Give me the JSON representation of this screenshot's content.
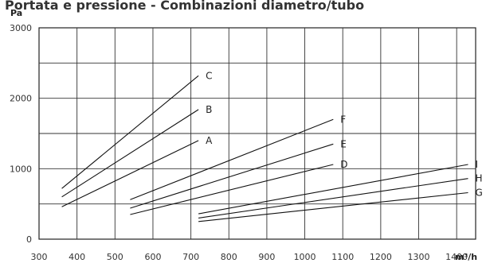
{
  "chart_data": {
    "type": "line",
    "title": "Portata e pressione - Combinazioni diametro/tubo",
    "ylabel": "Pa",
    "xlabel": "m³/h",
    "xlim": [
      300,
      1450
    ],
    "ylim": [
      0,
      3000
    ],
    "x_ticks": [
      300,
      400,
      500,
      600,
      700,
      800,
      900,
      1000,
      1100,
      1200,
      1300,
      1400
    ],
    "y_ticks": [
      0,
      1000,
      2000,
      3000
    ],
    "grid": true,
    "series": [
      {
        "name": "C",
        "x": [
          360,
          720
        ],
        "y": [
          720,
          2320
        ]
      },
      {
        "name": "B",
        "x": [
          360,
          720
        ],
        "y": [
          600,
          1840
        ]
      },
      {
        "name": "A",
        "x": [
          360,
          720
        ],
        "y": [
          460,
          1400
        ]
      },
      {
        "name": "F",
        "x": [
          540,
          1075
        ],
        "y": [
          560,
          1700
        ]
      },
      {
        "name": "E",
        "x": [
          540,
          1075
        ],
        "y": [
          440,
          1350
        ]
      },
      {
        "name": "D",
        "x": [
          540,
          1075
        ],
        "y": [
          350,
          1060
        ]
      },
      {
        "name": "I",
        "x": [
          720,
          1430
        ],
        "y": [
          360,
          1060
        ]
      },
      {
        "name": "H",
        "x": [
          720,
          1430
        ],
        "y": [
          300,
          860
        ]
      },
      {
        "name": "G",
        "x": [
          720,
          1430
        ],
        "y": [
          250,
          660
        ]
      }
    ]
  }
}
